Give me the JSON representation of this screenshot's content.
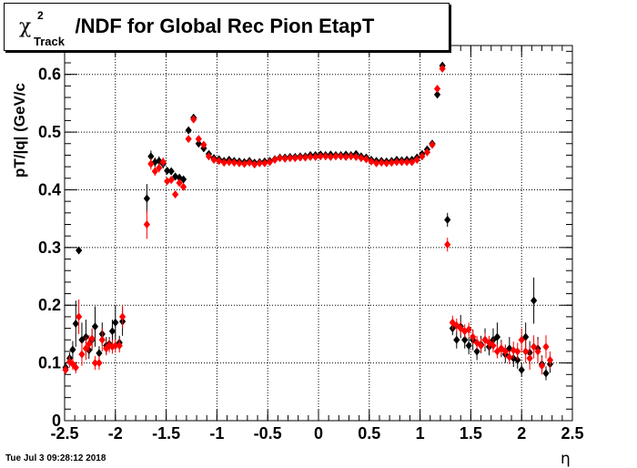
{
  "title": {
    "symbol": "χ",
    "superscript": "2",
    "subscript": "Track",
    "rest": "/NDF for Global Rec Pion EtapT"
  },
  "ylabel": "pT/|q| (GeV/c",
  "xlabel": "η",
  "footer": "Tue Jul  3 09:28:12 2018",
  "chart_data": {
    "type": "scatter",
    "xlim": [
      -2.5,
      2.5
    ],
    "ylim": [
      0,
      0.65
    ],
    "x_ticks": [
      "-2.5",
      "-2",
      "-1.5",
      "-1",
      "-0.5",
      "0",
      "0.5",
      "1",
      "1.5",
      "2",
      "2.5"
    ],
    "y_ticks": [
      "0",
      "0.1",
      "0.2",
      "0.3",
      "0.4",
      "0.5",
      "0.6"
    ],
    "grid": true,
    "series": [
      {
        "color": "#000000",
        "points": [
          [
            -2.49,
            0.092,
            0.008
          ],
          [
            -2.45,
            0.108,
            0.01
          ],
          [
            -2.42,
            0.123,
            0.015
          ],
          [
            -2.39,
            0.168,
            0.04
          ],
          [
            -2.36,
            0.295,
            0.006
          ],
          [
            -2.33,
            0.14,
            0.03
          ],
          [
            -2.29,
            0.145,
            0.03
          ],
          [
            -2.26,
            0.122,
            0.015
          ],
          [
            -2.23,
            0.14,
            0.018
          ],
          [
            -2.2,
            0.163,
            0.035
          ],
          [
            -2.16,
            0.117,
            0.012
          ],
          [
            -2.13,
            0.15,
            0.02
          ],
          [
            -2.09,
            0.13,
            0.015
          ],
          [
            -2.06,
            0.133,
            0.012
          ],
          [
            -2.03,
            0.155,
            0.02
          ],
          [
            -2.0,
            0.17,
            0.03
          ],
          [
            -1.96,
            0.135,
            0.012
          ],
          [
            -1.93,
            0.172,
            0.025
          ],
          [
            -1.69,
            0.385,
            0.025
          ],
          [
            -1.65,
            0.458,
            0.01
          ],
          [
            -1.61,
            0.448,
            0.008
          ],
          [
            -1.57,
            0.45,
            0.008
          ],
          [
            -1.53,
            0.445,
            0.008
          ],
          [
            -1.49,
            0.433,
            0.006
          ],
          [
            -1.45,
            0.432,
            0.006
          ],
          [
            -1.41,
            0.423,
            0.006
          ],
          [
            -1.37,
            0.421,
            0.006
          ],
          [
            -1.33,
            0.418,
            0.006
          ],
          [
            -1.28,
            0.503,
            0.006
          ],
          [
            -1.23,
            0.525,
            0.005
          ],
          [
            -1.18,
            0.48,
            0.005
          ],
          [
            -1.13,
            0.472,
            0.004
          ],
          [
            -1.08,
            0.462,
            0.004
          ],
          [
            -1.03,
            0.455,
            0.004
          ],
          [
            -0.98,
            0.453,
            0.004
          ],
          [
            -0.93,
            0.45,
            0.004
          ],
          [
            -0.88,
            0.452,
            0.004
          ],
          [
            -0.83,
            0.45,
            0.004
          ],
          [
            -0.78,
            0.449,
            0.004
          ],
          [
            -0.73,
            0.448,
            0.004
          ],
          [
            -0.68,
            0.45,
            0.004
          ],
          [
            -0.63,
            0.447,
            0.004
          ],
          [
            -0.58,
            0.448,
            0.004
          ],
          [
            -0.53,
            0.449,
            0.004
          ],
          [
            -0.48,
            0.45,
            0.004
          ],
          [
            -0.43,
            0.453,
            0.004
          ],
          [
            -0.38,
            0.456,
            0.004
          ],
          [
            -0.33,
            0.456,
            0.004
          ],
          [
            -0.28,
            0.457,
            0.004
          ],
          [
            -0.23,
            0.457,
            0.004
          ],
          [
            -0.18,
            0.458,
            0.004
          ],
          [
            -0.13,
            0.458,
            0.004
          ],
          [
            -0.08,
            0.46,
            0.004
          ],
          [
            -0.03,
            0.46,
            0.004
          ],
          [
            0.02,
            0.461,
            0.004
          ],
          [
            0.07,
            0.46,
            0.004
          ],
          [
            0.12,
            0.461,
            0.004
          ],
          [
            0.17,
            0.46,
            0.004
          ],
          [
            0.22,
            0.46,
            0.004
          ],
          [
            0.27,
            0.461,
            0.004
          ],
          [
            0.32,
            0.46,
            0.004
          ],
          [
            0.37,
            0.462,
            0.004
          ],
          [
            0.42,
            0.458,
            0.004
          ],
          [
            0.47,
            0.456,
            0.004
          ],
          [
            0.52,
            0.452,
            0.004
          ],
          [
            0.57,
            0.45,
            0.004
          ],
          [
            0.62,
            0.45,
            0.004
          ],
          [
            0.67,
            0.449,
            0.004
          ],
          [
            0.72,
            0.45,
            0.004
          ],
          [
            0.77,
            0.452,
            0.004
          ],
          [
            0.82,
            0.451,
            0.004
          ],
          [
            0.87,
            0.452,
            0.004
          ],
          [
            0.92,
            0.452,
            0.004
          ],
          [
            0.97,
            0.456,
            0.004
          ],
          [
            1.02,
            0.462,
            0.004
          ],
          [
            1.07,
            0.47,
            0.004
          ],
          [
            1.12,
            0.48,
            0.005
          ],
          [
            1.17,
            0.565,
            0.006
          ],
          [
            1.22,
            0.615,
            0.006
          ],
          [
            1.27,
            0.348,
            0.012
          ],
          [
            1.32,
            0.16,
            0.012
          ],
          [
            1.36,
            0.14,
            0.015
          ],
          [
            1.4,
            0.163,
            0.02
          ],
          [
            1.44,
            0.14,
            0.015
          ],
          [
            1.48,
            0.13,
            0.015
          ],
          [
            1.52,
            0.14,
            0.018
          ],
          [
            1.56,
            0.12,
            0.015
          ],
          [
            1.6,
            0.132,
            0.015
          ],
          [
            1.64,
            0.14,
            0.02
          ],
          [
            1.68,
            0.128,
            0.015
          ],
          [
            1.72,
            0.14,
            0.02
          ],
          [
            1.76,
            0.145,
            0.025
          ],
          [
            1.8,
            0.125,
            0.015
          ],
          [
            1.84,
            0.115,
            0.015
          ],
          [
            1.88,
            0.125,
            0.02
          ],
          [
            1.92,
            0.108,
            0.015
          ],
          [
            1.96,
            0.105,
            0.015
          ],
          [
            2.0,
            0.088,
            0.012
          ],
          [
            2.04,
            0.145,
            0.025
          ],
          [
            2.08,
            0.118,
            0.02
          ],
          [
            2.12,
            0.208,
            0.04
          ],
          [
            2.16,
            0.125,
            0.02
          ],
          [
            2.2,
            0.098,
            0.015
          ],
          [
            2.24,
            0.082,
            0.012
          ],
          [
            2.28,
            0.098,
            0.015
          ]
        ]
      },
      {
        "color": "#ff0000",
        "points": [
          [
            -2.49,
            0.088,
            0.008
          ],
          [
            -2.45,
            0.102,
            0.01
          ],
          [
            -2.42,
            0.098,
            0.01
          ],
          [
            -2.39,
            0.092,
            0.01
          ],
          [
            -2.36,
            0.18,
            0.03
          ],
          [
            -2.33,
            0.115,
            0.02
          ],
          [
            -2.29,
            0.125,
            0.02
          ],
          [
            -2.26,
            0.133,
            0.015
          ],
          [
            -2.23,
            0.142,
            0.018
          ],
          [
            -2.2,
            0.1,
            0.012
          ],
          [
            -2.16,
            0.1,
            0.012
          ],
          [
            -2.13,
            0.14,
            0.02
          ],
          [
            -2.09,
            0.125,
            0.012
          ],
          [
            -2.06,
            0.13,
            0.012
          ],
          [
            -2.03,
            0.128,
            0.012
          ],
          [
            -2.0,
            0.13,
            0.012
          ],
          [
            -1.96,
            0.13,
            0.012
          ],
          [
            -1.93,
            0.18,
            0.02
          ],
          [
            -1.69,
            0.34,
            0.025
          ],
          [
            -1.65,
            0.445,
            0.01
          ],
          [
            -1.61,
            0.432,
            0.008
          ],
          [
            -1.57,
            0.438,
            0.008
          ],
          [
            -1.53,
            0.448,
            0.008
          ],
          [
            -1.49,
            0.415,
            0.006
          ],
          [
            -1.45,
            0.417,
            0.006
          ],
          [
            -1.41,
            0.392,
            0.006
          ],
          [
            -1.37,
            0.412,
            0.006
          ],
          [
            -1.33,
            0.405,
            0.006
          ],
          [
            -1.28,
            0.488,
            0.006
          ],
          [
            -1.23,
            0.522,
            0.005
          ],
          [
            -1.18,
            0.488,
            0.005
          ],
          [
            -1.13,
            0.478,
            0.004
          ],
          [
            -1.08,
            0.458,
            0.004
          ],
          [
            -1.03,
            0.452,
            0.004
          ],
          [
            -0.98,
            0.45,
            0.004
          ],
          [
            -0.93,
            0.447,
            0.004
          ],
          [
            -0.88,
            0.448,
            0.004
          ],
          [
            -0.83,
            0.447,
            0.004
          ],
          [
            -0.78,
            0.446,
            0.004
          ],
          [
            -0.73,
            0.445,
            0.004
          ],
          [
            -0.68,
            0.447,
            0.004
          ],
          [
            -0.63,
            0.444,
            0.004
          ],
          [
            -0.58,
            0.446,
            0.004
          ],
          [
            -0.53,
            0.446,
            0.004
          ],
          [
            -0.48,
            0.448,
            0.004
          ],
          [
            -0.43,
            0.452,
            0.004
          ],
          [
            -0.38,
            0.455,
            0.004
          ],
          [
            -0.33,
            0.454,
            0.004
          ],
          [
            -0.28,
            0.455,
            0.004
          ],
          [
            -0.23,
            0.455,
            0.004
          ],
          [
            -0.18,
            0.456,
            0.004
          ],
          [
            -0.13,
            0.456,
            0.004
          ],
          [
            -0.08,
            0.457,
            0.004
          ],
          [
            -0.03,
            0.457,
            0.004
          ],
          [
            0.02,
            0.458,
            0.004
          ],
          [
            0.07,
            0.458,
            0.004
          ],
          [
            0.12,
            0.457,
            0.004
          ],
          [
            0.17,
            0.458,
            0.004
          ],
          [
            0.22,
            0.458,
            0.004
          ],
          [
            0.27,
            0.457,
            0.004
          ],
          [
            0.32,
            0.458,
            0.004
          ],
          [
            0.37,
            0.457,
            0.004
          ],
          [
            0.42,
            0.455,
            0.004
          ],
          [
            0.47,
            0.453,
            0.004
          ],
          [
            0.52,
            0.449,
            0.004
          ],
          [
            0.57,
            0.446,
            0.004
          ],
          [
            0.62,
            0.447,
            0.004
          ],
          [
            0.67,
            0.446,
            0.004
          ],
          [
            0.72,
            0.447,
            0.004
          ],
          [
            0.77,
            0.448,
            0.004
          ],
          [
            0.82,
            0.448,
            0.004
          ],
          [
            0.87,
            0.448,
            0.004
          ],
          [
            0.92,
            0.448,
            0.004
          ],
          [
            0.97,
            0.452,
            0.004
          ],
          [
            1.02,
            0.458,
            0.004
          ],
          [
            1.07,
            0.465,
            0.004
          ],
          [
            1.12,
            0.478,
            0.005
          ],
          [
            1.17,
            0.575,
            0.006
          ],
          [
            1.22,
            0.61,
            0.006
          ],
          [
            1.27,
            0.305,
            0.012
          ],
          [
            1.32,
            0.17,
            0.012
          ],
          [
            1.36,
            0.165,
            0.012
          ],
          [
            1.4,
            0.16,
            0.012
          ],
          [
            1.44,
            0.155,
            0.012
          ],
          [
            1.48,
            0.158,
            0.012
          ],
          [
            1.52,
            0.145,
            0.012
          ],
          [
            1.56,
            0.135,
            0.012
          ],
          [
            1.6,
            0.13,
            0.012
          ],
          [
            1.64,
            0.14,
            0.012
          ],
          [
            1.68,
            0.135,
            0.012
          ],
          [
            1.72,
            0.13,
            0.012
          ],
          [
            1.76,
            0.12,
            0.012
          ],
          [
            1.8,
            0.125,
            0.012
          ],
          [
            1.84,
            0.12,
            0.012
          ],
          [
            1.88,
            0.11,
            0.012
          ],
          [
            1.92,
            0.122,
            0.015
          ],
          [
            1.96,
            0.12,
            0.015
          ],
          [
            2.0,
            0.14,
            0.02
          ],
          [
            2.04,
            0.12,
            0.02
          ],
          [
            2.08,
            0.108,
            0.02
          ],
          [
            2.12,
            0.128,
            0.02
          ],
          [
            2.16,
            0.12,
            0.02
          ],
          [
            2.2,
            0.095,
            0.015
          ],
          [
            2.24,
            0.128,
            0.02
          ],
          [
            2.28,
            0.105,
            0.015
          ]
        ]
      }
    ]
  }
}
